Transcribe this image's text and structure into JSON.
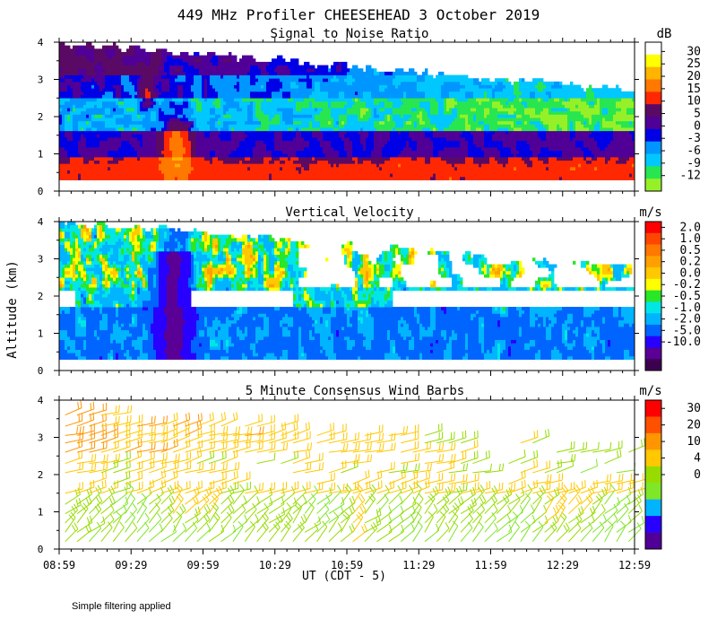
{
  "title": "449 MHz Profiler CHEESEHEAD  3 October 2019",
  "ylabel": "Altitude (km)",
  "xlabel": "UT  (CDT - 5)",
  "footnote": "Simple filtering applied",
  "colors": {
    "snr": [
      "#96F028",
      "#28E650",
      "#00C8FF",
      "#0096FF",
      "#0000E6",
      "#500096",
      "#5A0A64",
      "#FF2800",
      "#FF7800",
      "#FFB400",
      "#FFFF00",
      "#FFFFFF"
    ],
    "vv": [
      "#3C0050",
      "#5A0096",
      "#2800FF",
      "#0064FF",
      "#00B4FF",
      "#00E6E6",
      "#28E628",
      "#FFFF00",
      "#FFC800",
      "#FFA000",
      "#FF7800",
      "#FF4600",
      "#FF0000"
    ],
    "wind": [
      "#500096",
      "#2800FF",
      "#00B4FF",
      "#7FE628",
      "#96DC00",
      "#FFC800",
      "#FF9600",
      "#FF5000",
      "#FF0000"
    ]
  },
  "chart_data": [
    {
      "type": "heatmap",
      "title": "Signal to Noise Ratio",
      "units": "dB",
      "colorbar_ticks": [
        "30",
        "25",
        "20",
        "15",
        "10",
        "5",
        "0",
        "-3",
        "-6",
        "-9",
        "-12"
      ],
      "x_ticks": [
        "08:59",
        "09:29",
        "09:59",
        "10:29",
        "10:59",
        "11:29",
        "11:59",
        "12:29",
        "12:59"
      ],
      "x_range_hours": [
        8.983,
        12.983
      ],
      "ylim": [
        0,
        4
      ],
      "y_ticks": [
        "0",
        "1",
        "2",
        "3",
        "4"
      ],
      "data_altitude_range_km": [
        0.3,
        4.0
      ]
    },
    {
      "type": "heatmap",
      "title": "Vertical Velocity",
      "units": "m/s",
      "colorbar_ticks": [
        "2.0",
        "1.0",
        "0.5",
        "0.2",
        "0.0",
        "-0.2",
        "-0.5",
        "-1.0",
        "-2.0",
        "-5.0",
        "-10.0"
      ],
      "x_ticks": [
        "08:59",
        "09:29",
        "09:59",
        "10:29",
        "10:59",
        "11:29",
        "11:59",
        "12:29",
        "12:59"
      ],
      "x_range_hours": [
        8.983,
        12.983
      ],
      "ylim": [
        0,
        4
      ],
      "y_ticks": [
        "0",
        "1",
        "2",
        "3",
        "4"
      ],
      "data_altitude_range_km": [
        0.3,
        4.0
      ]
    },
    {
      "type": "scatter",
      "title": "5 Minute Consensus Wind Barbs",
      "units": "m/s",
      "colorbar_ticks": [
        "30",
        "20",
        "10",
        "4",
        "0"
      ],
      "x_ticks": [
        "08:59",
        "09:29",
        "09:59",
        "10:29",
        "10:59",
        "11:29",
        "11:59",
        "12:29",
        "12:59"
      ],
      "x_tick_labels": [
        "08:59",
        "09:29",
        "09:59",
        "10:29",
        "10:59",
        "11:29",
        "11:59",
        "12:29",
        "12:59"
      ],
      "x_range_hours": [
        8.983,
        12.983
      ],
      "ylim": [
        0,
        4
      ],
      "y_ticks": [
        "0",
        "1",
        "2",
        "3",
        "4"
      ],
      "sample_interval_min": 5
    }
  ]
}
